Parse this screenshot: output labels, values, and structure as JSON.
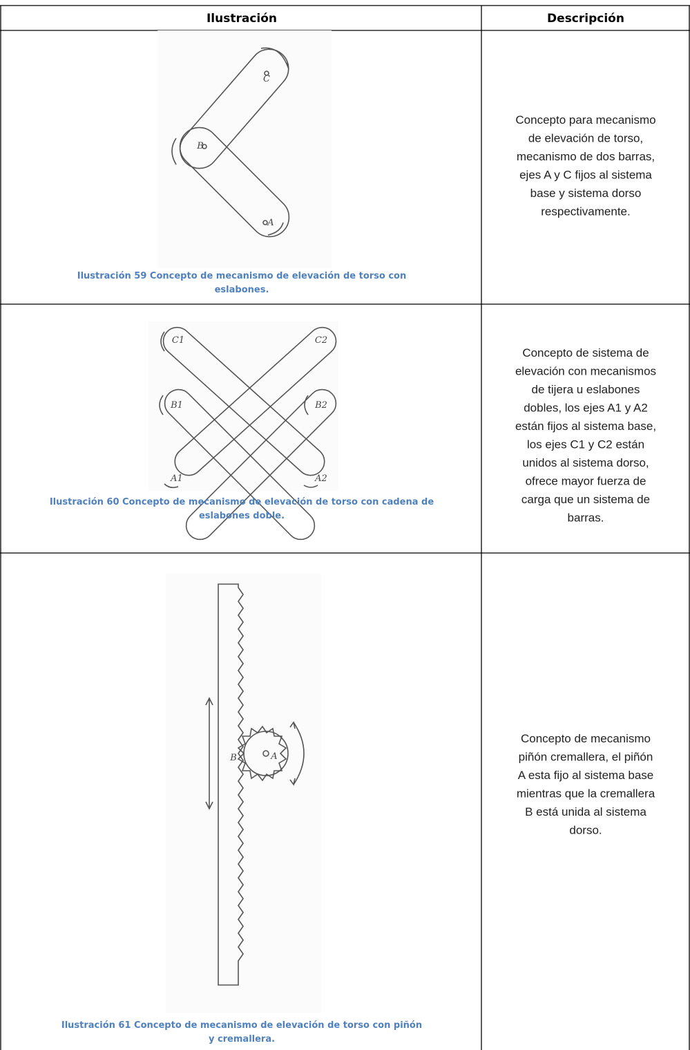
{
  "table": {
    "header": [
      "Ilustración",
      "Descripción"
    ],
    "rows": [
      {
        "caption": "Ilustración 59 Concepto de mecanismo de elevación de torso con eslabones.",
        "sketch_labels": [
          "C",
          "B",
          "A"
        ],
        "description": [
          "Concepto para mecanismo",
          "de elevación de torso,",
          "mecanismo de dos barras,",
          "ejes A y C fijos al sistema",
          "base y sistema dorso",
          "respectivamente."
        ]
      },
      {
        "caption": "Ilustración 60 Concepto de mecanismo de elevación de torso con cadena de eslabones doble.",
        "sketch_labels": [
          "C1",
          "C2",
          "B1",
          "B2",
          "A1",
          "A2"
        ],
        "description": [
          "Concepto de sistema de",
          "elevación con mecanismos",
          "de tijera u eslabones",
          "dobles, los ejes A1 y A2",
          "están fijos al sistema base,",
          "los ejes C1 y C2 están",
          "unidos al sistema dorso,",
          "ofrece mayor fuerza de",
          "carga que un sistema de",
          "barras."
        ]
      },
      {
        "caption": "Ilustración 61 Concepto de mecanismo de elevación de torso con piñón y cremallera.",
        "sketch_labels": [
          "B",
          "A"
        ],
        "description": [
          "Concepto de mecanismo",
          "piñón cremallera, el piñón",
          "A esta fijo al sistema base",
          "mientras que la cremallera",
          "B está unida al sistema",
          "dorso."
        ]
      }
    ]
  }
}
